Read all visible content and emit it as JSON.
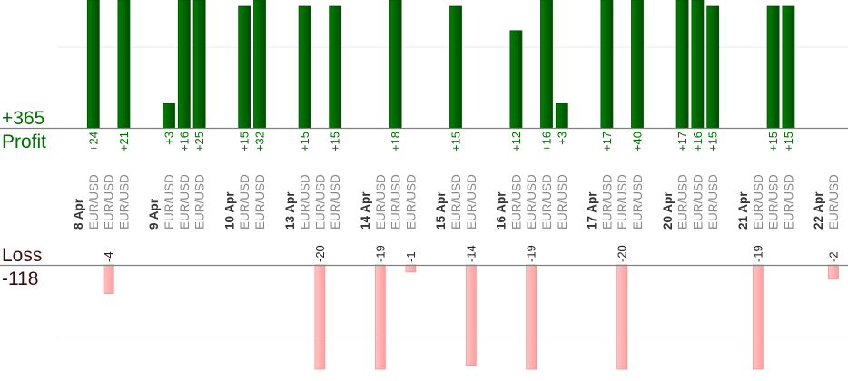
{
  "summary": {
    "profit_total": "+365",
    "profit_label": "Profit",
    "loss_label": "Loss",
    "loss_total": "-118"
  },
  "colors": {
    "profit": "#006400",
    "profit_text": "#007000",
    "loss": "#ffb0b0",
    "loss_text": "#3a0a0a",
    "date_text": "#333333",
    "pair_text": "#888888"
  },
  "chart_data": {
    "type": "bar",
    "title": "",
    "xlabel": "",
    "ylabel": "",
    "profit_gridline": 10,
    "loss_gridline": -10,
    "days": [
      {
        "date": "8 Apr",
        "trades": [
          {
            "pair": "EUR/USD",
            "result": 24
          },
          {
            "pair": "EUR/USD",
            "result": -4
          },
          {
            "pair": "EUR/USD",
            "result": 21
          }
        ]
      },
      {
        "date": "9 Apr",
        "trades": [
          {
            "pair": "EUR/USD",
            "result": 3
          },
          {
            "pair": "EUR/USD",
            "result": 16
          },
          {
            "pair": "EUR/USD",
            "result": 25
          }
        ]
      },
      {
        "date": "10 Apr",
        "trades": [
          {
            "pair": "EUR/USD",
            "result": 15
          },
          {
            "pair": "EUR/USD",
            "result": 32
          }
        ]
      },
      {
        "date": "13 Apr",
        "trades": [
          {
            "pair": "EUR/USD",
            "result": 15
          },
          {
            "pair": "EUR/USD",
            "result": -20
          },
          {
            "pair": "EUR/USD",
            "result": 15
          }
        ]
      },
      {
        "date": "14 Apr",
        "trades": [
          {
            "pair": "EUR/USD",
            "result": -19
          },
          {
            "pair": "EUR/USD",
            "result": 18
          },
          {
            "pair": "EUR/USD",
            "result": -1
          }
        ]
      },
      {
        "date": "15 Apr",
        "trades": [
          {
            "pair": "EUR/USD",
            "result": 15
          },
          {
            "pair": "EUR/USD",
            "result": -14
          }
        ]
      },
      {
        "date": "16 Apr",
        "trades": [
          {
            "pair": "EUR/USD",
            "result": 12
          },
          {
            "pair": "EUR/USD",
            "result": -19
          },
          {
            "pair": "EUR/USD",
            "result": 16
          },
          {
            "pair": "EUR/USD",
            "result": 3
          }
        ]
      },
      {
        "date": "17 Apr",
        "trades": [
          {
            "pair": "EUR/USD",
            "result": 17
          },
          {
            "pair": "EUR/USD",
            "result": -20
          },
          {
            "pair": "EUR/USD",
            "result": 40
          }
        ]
      },
      {
        "date": "20 Apr",
        "trades": [
          {
            "pair": "EUR/USD",
            "result": 17
          },
          {
            "pair": "EUR/USD",
            "result": 16
          },
          {
            "pair": "EUR/USD",
            "result": 15
          }
        ]
      },
      {
        "date": "21 Apr",
        "trades": [
          {
            "pair": "EUR/USD",
            "result": -19
          },
          {
            "pair": "EUR/USD",
            "result": 15
          },
          {
            "pair": "EUR/USD",
            "result": 15
          }
        ]
      },
      {
        "date": "22 Apr",
        "trades": [
          {
            "pair": "EUR/USD",
            "result": -2
          }
        ]
      }
    ]
  }
}
